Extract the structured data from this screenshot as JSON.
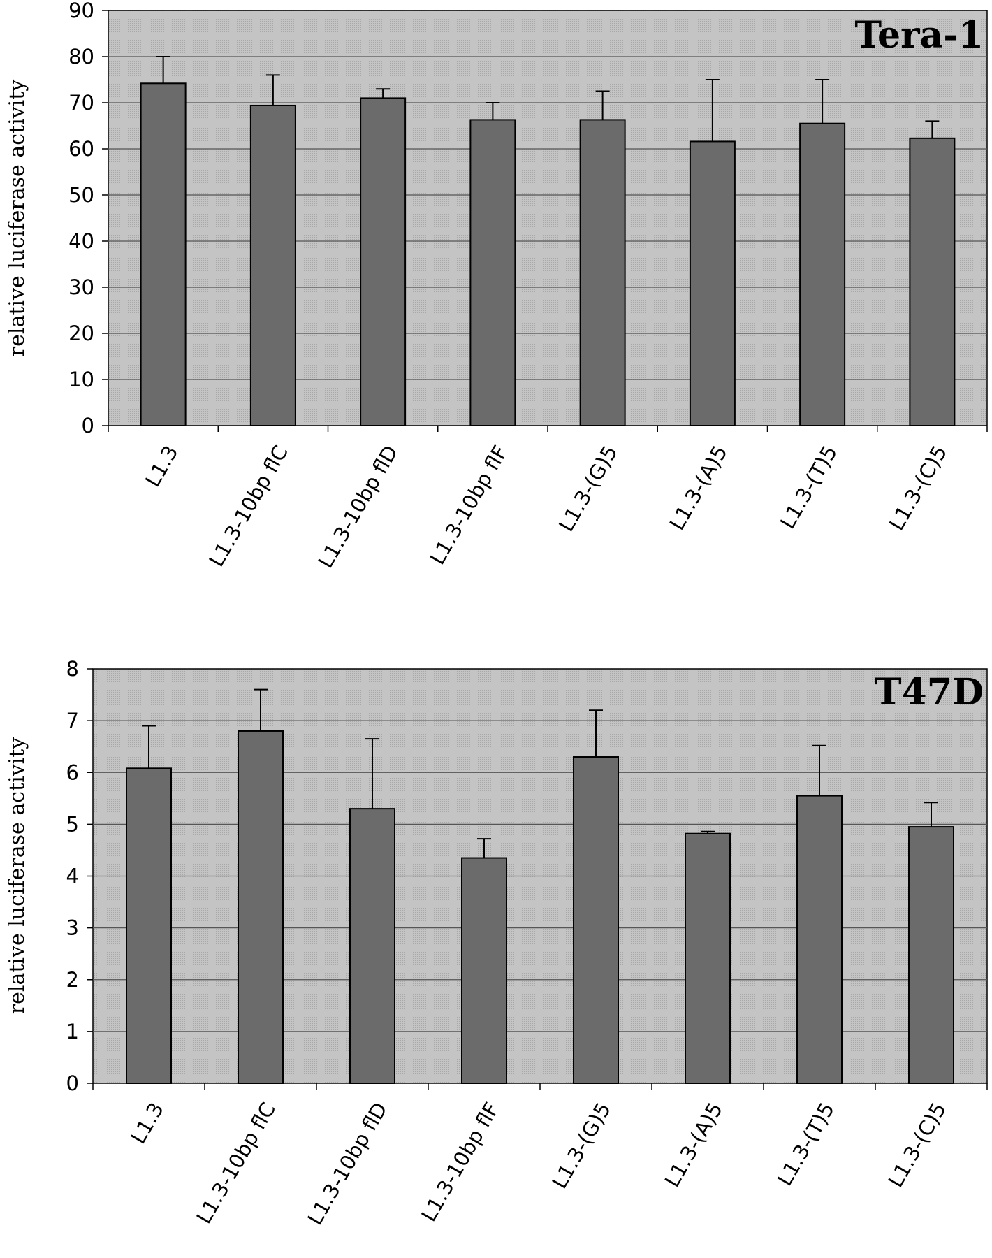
{
  "chart_data": [
    {
      "type": "bar",
      "title": "Tera-1",
      "ylabel": "relative luciferase activity",
      "xlabel": "",
      "categories": [
        "L1.3",
        "L1.3-10bp flC",
        "L1.3-10bp flD",
        "L1.3-10bp flF",
        "L1.3-(G)5",
        "L1.3-(A)5",
        "L1.3-(T)5",
        "L1.3-(C)5"
      ],
      "values": [
        74.2,
        69.4,
        71.0,
        66.3,
        66.3,
        61.6,
        65.5,
        62.3
      ],
      "error_upper": [
        80.0,
        76.0,
        73.0,
        70.0,
        72.5,
        75.0,
        75.0,
        66.0
      ],
      "ylim": [
        0,
        90
      ],
      "yticks": [
        0,
        10,
        20,
        30,
        40,
        50,
        60,
        70,
        80,
        90
      ],
      "grid": true,
      "colors": {
        "bar": "#6b6b6b",
        "plot_bg": "#c0c0c0",
        "grid": "#555555"
      }
    },
    {
      "type": "bar",
      "title": "T47D",
      "ylabel": "relative luciferase activity",
      "xlabel": "",
      "categories": [
        "L1.3",
        "L1.3-10bp flC",
        "L1.3-10bp flD",
        "L1.3-10bp flF",
        "L1.3-(G)5",
        "L1.3-(A)5",
        "L1.3-(T)5",
        "L1.3-(C)5"
      ],
      "values": [
        6.08,
        6.8,
        5.3,
        4.35,
        6.3,
        4.82,
        5.55,
        4.95
      ],
      "error_upper": [
        6.9,
        7.6,
        6.65,
        4.72,
        7.2,
        4.86,
        6.52,
        5.42
      ],
      "ylim": [
        0,
        8
      ],
      "yticks": [
        0,
        1,
        2,
        3,
        4,
        5,
        6,
        7,
        8
      ],
      "grid": true,
      "colors": {
        "bar": "#6b6b6b",
        "plot_bg": "#c0c0c0",
        "grid": "#555555"
      }
    }
  ]
}
